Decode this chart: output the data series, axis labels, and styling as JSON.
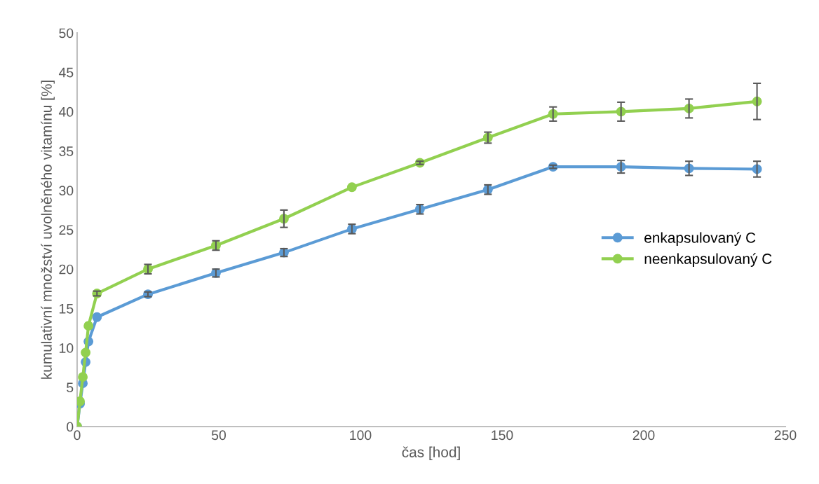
{
  "chart_data": {
    "type": "line",
    "xlabel": "čas [hod]",
    "ylabel": "kumulativní množství uvolněného vitamínu [%]",
    "x": [
      0,
      1,
      2,
      3,
      4,
      7,
      25,
      49,
      73,
      97,
      121,
      145,
      168,
      192,
      216,
      240
    ],
    "series": [
      {
        "name": "enkapsulovaný C",
        "color": "#5b9bd5",
        "values": [
          0,
          2.9,
          5.5,
          8.2,
          10.8,
          13.9,
          16.8,
          19.5,
          22.1,
          25.1,
          27.6,
          30.1,
          33.0,
          33.0,
          32.8,
          32.7
        ],
        "errors": [
          null,
          null,
          null,
          null,
          null,
          null,
          0.3,
          0.5,
          0.5,
          0.6,
          0.6,
          0.6,
          0.2,
          0.8,
          0.9,
          1.0
        ]
      },
      {
        "name": "neenkapsulovaný C",
        "color": "#92d050",
        "values": [
          0,
          3.2,
          6.3,
          9.4,
          12.8,
          16.9,
          20.0,
          23.0,
          26.4,
          30.4,
          33.5,
          36.7,
          39.7,
          40.0,
          40.4,
          41.3
        ],
        "errors": [
          null,
          null,
          null,
          null,
          null,
          0.3,
          0.6,
          0.6,
          1.1,
          null,
          0.2,
          0.7,
          0.9,
          1.2,
          1.2,
          2.3
        ]
      }
    ],
    "xlim": [
      0,
      250
    ],
    "xticks": [
      0,
      50,
      100,
      150,
      200,
      250
    ],
    "ylim": [
      0,
      50
    ],
    "yticks": [
      0,
      5,
      10,
      15,
      20,
      25,
      30,
      35,
      40,
      45,
      50
    ],
    "grid": false,
    "legend": "center right",
    "marker": "circle",
    "line_style": "solid"
  }
}
